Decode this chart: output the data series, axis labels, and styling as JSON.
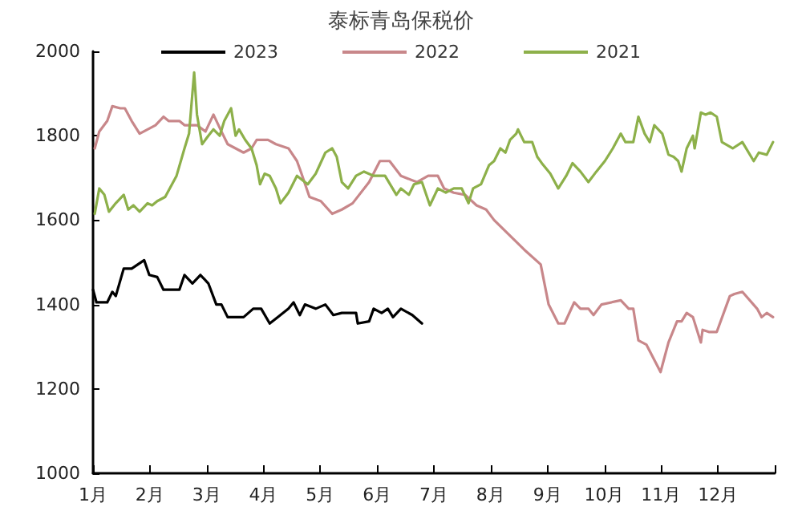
{
  "chart_data": {
    "type": "line",
    "title": "泰标青岛保税价",
    "xlim": [
      1,
      13
    ],
    "xticks": [
      {
        "value": 1,
        "label": "1月"
      },
      {
        "value": 2,
        "label": "2月"
      },
      {
        "value": 3,
        "label": "3月"
      },
      {
        "value": 4,
        "label": "4月"
      },
      {
        "value": 5,
        "label": "5月"
      },
      {
        "value": 6,
        "label": "6月"
      },
      {
        "value": 7,
        "label": "7月"
      },
      {
        "value": 8,
        "label": "8月"
      },
      {
        "value": 9,
        "label": "9月"
      },
      {
        "value": 10,
        "label": "10月"
      },
      {
        "value": 11,
        "label": "11月"
      },
      {
        "value": 12,
        "label": "12月"
      },
      {
        "value": 13,
        "label": null
      }
    ],
    "ylim": [
      1000,
      2000
    ],
    "yticks": [
      1000,
      1200,
      1400,
      1600,
      1800,
      2000
    ],
    "grid": false,
    "legend": "top",
    "marker": "none",
    "line_style": "solid",
    "series": [
      {
        "name": "2023",
        "color": "#000000",
        "x": [
          1.0,
          1.06,
          1.25,
          1.34,
          1.4,
          1.54,
          1.68,
          1.9,
          1.99,
          2.13,
          2.24,
          2.52,
          2.61,
          2.75,
          2.89,
          3.03,
          3.17,
          3.26,
          3.37,
          3.65,
          3.82,
          3.96,
          4.11,
          4.25,
          4.44,
          4.53,
          4.64,
          4.73,
          4.92,
          5.09,
          5.23,
          5.38,
          5.63,
          5.66,
          5.86,
          5.94,
          6.08,
          6.19,
          6.28,
          6.42,
          6.62,
          6.79
        ],
        "values": [
          1435,
          1405,
          1405,
          1430,
          1420,
          1485,
          1485,
          1505,
          1470,
          1465,
          1435,
          1435,
          1470,
          1450,
          1470,
          1450,
          1400,
          1400,
          1370,
          1370,
          1390,
          1390,
          1355,
          1370,
          1390,
          1405,
          1375,
          1400,
          1390,
          1400,
          1375,
          1380,
          1380,
          1355,
          1360,
          1390,
          1380,
          1390,
          1370,
          1390,
          1375,
          1355
        ]
      },
      {
        "name": "2022",
        "color": "#c8878a",
        "x": [
          1.03,
          1.11,
          1.25,
          1.34,
          1.48,
          1.56,
          1.68,
          1.82,
          2.1,
          2.24,
          2.33,
          2.52,
          2.61,
          2.83,
          2.98,
          3.12,
          3.26,
          3.37,
          3.51,
          3.65,
          3.79,
          3.88,
          4.08,
          4.22,
          4.44,
          4.59,
          4.67,
          4.81,
          5.01,
          5.21,
          5.38,
          5.57,
          5.86,
          6.05,
          6.22,
          6.42,
          6.7,
          6.9,
          7.07,
          7.18,
          7.35,
          7.55,
          7.75,
          7.92,
          8.06,
          8.59,
          8.88,
          9.02,
          9.19,
          9.3,
          9.47,
          9.58,
          9.72,
          9.81,
          9.95,
          10.29,
          10.43,
          10.51,
          10.6,
          10.74,
          10.99,
          11.13,
          11.28,
          11.36,
          11.45,
          11.56,
          11.7,
          11.73,
          11.84,
          11.98,
          12.21,
          12.29,
          12.43,
          12.69,
          12.77,
          12.86,
          12.97
        ],
        "values": [
          1770,
          1810,
          1835,
          1870,
          1865,
          1865,
          1835,
          1805,
          1825,
          1845,
          1835,
          1835,
          1825,
          1825,
          1810,
          1850,
          1810,
          1780,
          1770,
          1760,
          1770,
          1790,
          1790,
          1780,
          1770,
          1740,
          1710,
          1655,
          1645,
          1615,
          1625,
          1640,
          1690,
          1740,
          1740,
          1705,
          1690,
          1705,
          1705,
          1675,
          1665,
          1660,
          1635,
          1625,
          1600,
          1530,
          1495,
          1400,
          1355,
          1355,
          1405,
          1390,
          1390,
          1375,
          1400,
          1410,
          1390,
          1390,
          1315,
          1305,
          1240,
          1310,
          1360,
          1360,
          1380,
          1370,
          1310,
          1340,
          1335,
          1335,
          1420,
          1425,
          1430,
          1390,
          1370,
          1380,
          1370
        ]
      },
      {
        "name": "2021",
        "color": "#8db04a",
        "x": [
          1.03,
          1.11,
          1.2,
          1.28,
          1.4,
          1.54,
          1.62,
          1.71,
          1.82,
          1.96,
          2.04,
          2.13,
          2.27,
          2.47,
          2.61,
          2.69,
          2.78,
          2.83,
          2.92,
          3.03,
          3.12,
          3.23,
          3.31,
          3.43,
          3.51,
          3.57,
          3.68,
          3.79,
          3.88,
          3.94,
          4.02,
          4.11,
          4.22,
          4.3,
          4.44,
          4.59,
          4.78,
          4.92,
          5.09,
          5.21,
          5.29,
          5.38,
          5.49,
          5.63,
          5.77,
          5.94,
          6.14,
          6.34,
          6.42,
          6.56,
          6.65,
          6.79,
          6.93,
          7.07,
          7.21,
          7.35,
          7.49,
          7.61,
          7.69,
          7.83,
          7.97,
          8.06,
          8.17,
          8.26,
          8.34,
          8.45,
          8.48,
          8.59,
          8.73,
          8.82,
          8.9,
          9.05,
          9.19,
          9.33,
          9.44,
          9.58,
          9.72,
          9.86,
          10.01,
          10.15,
          10.29,
          10.37,
          10.51,
          10.6,
          10.71,
          10.8,
          10.88,
          11.02,
          11.13,
          11.22,
          11.3,
          11.36,
          11.45,
          11.56,
          11.59,
          11.7,
          11.78,
          11.87,
          11.98,
          12.07,
          12.26,
          12.43,
          12.63,
          12.72,
          12.86,
          12.97
        ],
        "values": [
          1615,
          1675,
          1660,
          1620,
          1640,
          1660,
          1625,
          1635,
          1620,
          1640,
          1635,
          1645,
          1655,
          1705,
          1770,
          1805,
          1950,
          1850,
          1780,
          1800,
          1815,
          1800,
          1835,
          1865,
          1800,
          1815,
          1790,
          1770,
          1730,
          1685,
          1710,
          1705,
          1675,
          1640,
          1665,
          1705,
          1685,
          1710,
          1760,
          1770,
          1750,
          1690,
          1675,
          1705,
          1715,
          1705,
          1705,
          1660,
          1675,
          1660,
          1685,
          1690,
          1635,
          1675,
          1665,
          1675,
          1675,
          1640,
          1675,
          1685,
          1730,
          1740,
          1770,
          1760,
          1790,
          1805,
          1815,
          1785,
          1785,
          1750,
          1735,
          1710,
          1675,
          1705,
          1735,
          1715,
          1690,
          1715,
          1740,
          1770,
          1805,
          1785,
          1785,
          1845,
          1805,
          1785,
          1825,
          1805,
          1755,
          1750,
          1740,
          1715,
          1770,
          1800,
          1770,
          1855,
          1850,
          1855,
          1845,
          1785,
          1770,
          1785,
          1740,
          1760,
          1755,
          1785
        ]
      }
    ]
  }
}
